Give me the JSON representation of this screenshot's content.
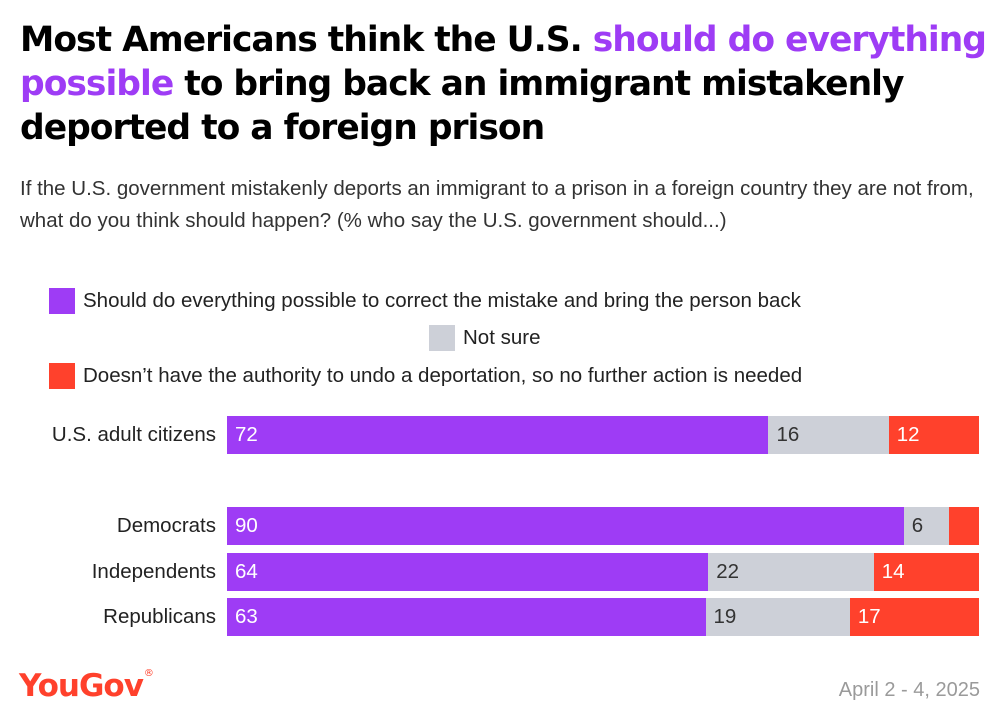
{
  "title": {
    "part1": "Most Americans think the U.S. ",
    "highlight": "should do everything possible",
    "part2": " to bring back an immigrant mistakenly deported to a foreign prison",
    "highlight_color": "#9e3cf5"
  },
  "subtitle": "If the U.S. government mistakenly deports an immigrant to a prison in a foreign country they are not from, what do you think should happen? (% who say the U.S. government should...)",
  "legend": [
    {
      "label": "Should do everything possible to correct the mistake and bring the person back",
      "color": "#9e3cf5"
    },
    {
      "label": "Not sure",
      "color": "#cdd0d8"
    },
    {
      "label": "Doesn’t have the authority to undo a deportation, so no further action is needed",
      "color": "#ff412c"
    }
  ],
  "chart_data": {
    "type": "bar",
    "orientation": "horizontal",
    "stacked": true,
    "unit": "%",
    "categories": [
      "U.S. adult citizens",
      "Democrats",
      "Independents",
      "Republicans"
    ],
    "series": [
      {
        "name": "Should do everything possible to correct the mistake and bring the person back",
        "color": "#9e3cf5",
        "values": [
          72,
          90,
          64,
          63
        ],
        "labels": [
          "72",
          "90",
          "64",
          "63"
        ]
      },
      {
        "name": "Not sure",
        "color": "#cdd0d8",
        "values": [
          16,
          6,
          22,
          19
        ],
        "labels": [
          "16",
          "6",
          "22",
          "19"
        ]
      },
      {
        "name": "Doesn’t have the authority to undo a deportation, so no further action is needed",
        "color": "#ff412c",
        "values": [
          12,
          4,
          14,
          17
        ],
        "labels": [
          "12",
          "",
          "14",
          "17"
        ]
      }
    ],
    "label_colors": [
      "#ffffff",
      "#333333",
      "#ffffff"
    ]
  },
  "brand": "YouGov",
  "brand_mark": "®",
  "date": "April 2 - 4, 2025"
}
